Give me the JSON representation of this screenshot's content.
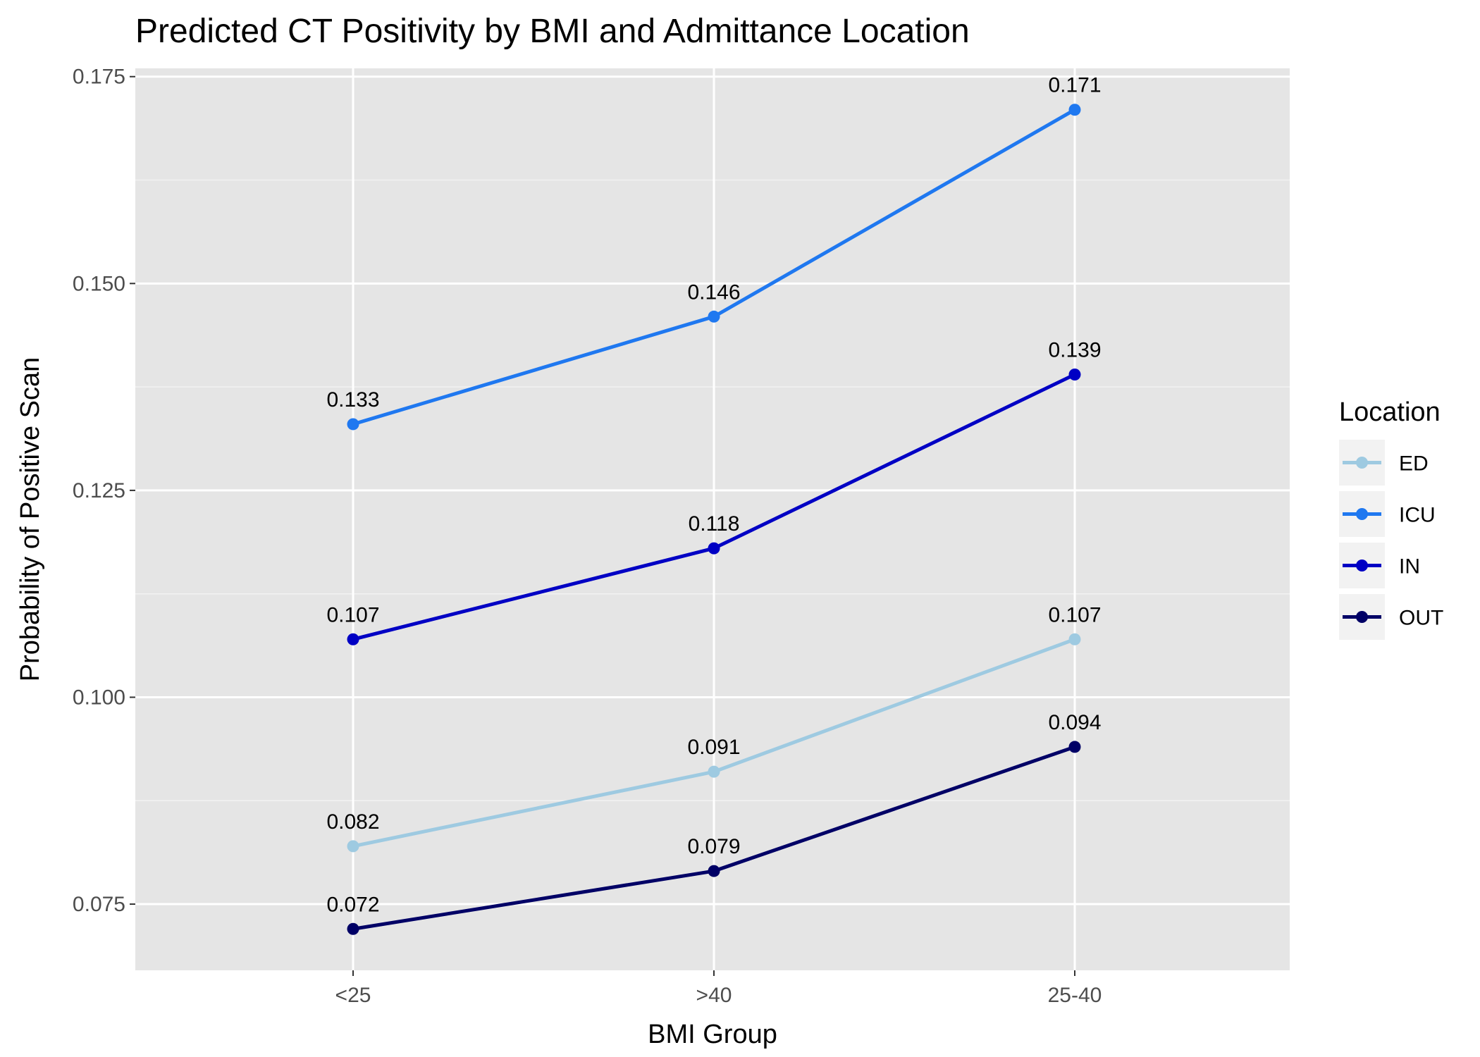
{
  "chart_data": {
    "type": "line",
    "title": "Predicted CT Positivity by BMI and Admittance Location",
    "xlabel": "BMI Group",
    "ylabel": "Probability of Positive Scan",
    "categories": [
      "<25",
      ">40",
      "25-40"
    ],
    "ylim": [
      0.067,
      0.176
    ],
    "yticks": [
      0.075,
      0.1,
      0.125,
      0.15,
      0.175
    ],
    "ytick_labels": [
      "0.075",
      "0.100",
      "0.125",
      "0.150",
      "0.175"
    ],
    "grid": true,
    "legend": {
      "title": "Location",
      "placement": "right"
    },
    "series": [
      {
        "name": "ED",
        "color": "#9ecae1",
        "values": [
          0.082,
          0.091,
          0.107
        ],
        "labels": [
          "0.082",
          "0.091",
          "0.107"
        ]
      },
      {
        "name": "ICU",
        "color": "#1f78f0",
        "values": [
          0.133,
          0.146,
          0.171
        ],
        "labels": [
          "0.133",
          "0.146",
          "0.171"
        ]
      },
      {
        "name": "IN",
        "color": "#0000c4",
        "values": [
          0.107,
          0.118,
          0.139
        ],
        "labels": [
          "0.107",
          "0.118",
          "0.139"
        ]
      },
      {
        "name": "OUT",
        "color": "#000066",
        "values": [
          0.072,
          0.079,
          0.094
        ],
        "labels": [
          "0.072",
          "0.079",
          "0.094"
        ]
      }
    ]
  }
}
